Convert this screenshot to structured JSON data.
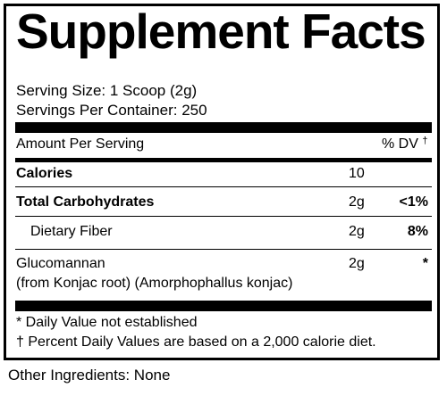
{
  "title": "Supplement Facts",
  "serving_size": "Serving Size: 1 Scoop (2g)",
  "servings_per_container": "Servings Per Container: 250",
  "header": {
    "amount_label": "Amount Per Serving",
    "dv_label": "% DV",
    "dv_mark": "†"
  },
  "rows": [
    {
      "name": "Calories",
      "amount": "10",
      "dv": ""
    },
    {
      "name": "Total Carbohydrates",
      "amount": "2g",
      "dv": "<1%"
    },
    {
      "name": "Dietary Fiber",
      "amount": "2g",
      "dv": "8%"
    },
    {
      "name": "Glucomannan",
      "subtext": "(from Konjac root) (Amorphophallus konjac)",
      "amount": "2g",
      "dv": "*"
    }
  ],
  "footnotes": [
    "* Daily Value not established",
    "† Percent Daily Values are based on a 2,000 calorie diet."
  ],
  "other_ingredients": "Other Ingredients: None"
}
